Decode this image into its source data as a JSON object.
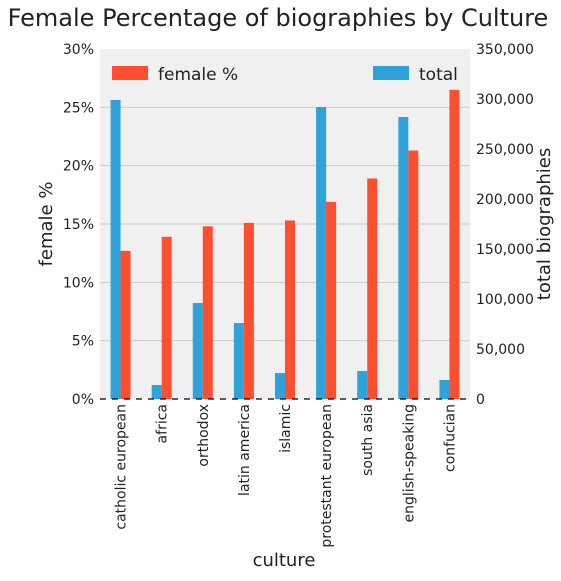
{
  "chart_data": {
    "type": "bar",
    "title": "Female Percentage of biographies by Culture",
    "xlabel": "culture",
    "ylabel_left": "female %",
    "ylabel_right": "total biographies",
    "categories": [
      "catholic european",
      "africa",
      "orthodox",
      "latin america",
      "islamic",
      "protestant european",
      "south asia",
      "english-speaking",
      "confucian"
    ],
    "series": [
      {
        "name": "total",
        "axis": "right",
        "color": "#30a2da",
        "values": [
          299000,
          14000,
          96000,
          76000,
          26000,
          292000,
          28000,
          282000,
          19000
        ]
      },
      {
        "name": "female %",
        "axis": "left",
        "color": "#fc4f30",
        "values": [
          12.7,
          13.9,
          14.8,
          15.1,
          15.3,
          16.9,
          18.9,
          21.3,
          26.5
        ]
      }
    ],
    "ylim_left": [
      0,
      30
    ],
    "yticks_left": [
      "0%",
      "5%",
      "10%",
      "15%",
      "20%",
      "25%",
      "30%"
    ],
    "ylim_right": [
      0,
      350000
    ],
    "yticks_right": [
      "0",
      "50,000",
      "100,000",
      "150,000",
      "200,000",
      "250,000",
      "300,000",
      "350,000"
    ],
    "legend_left": "female %",
    "legend_right": "total",
    "grid": true,
    "background": "#f0f0f0"
  }
}
